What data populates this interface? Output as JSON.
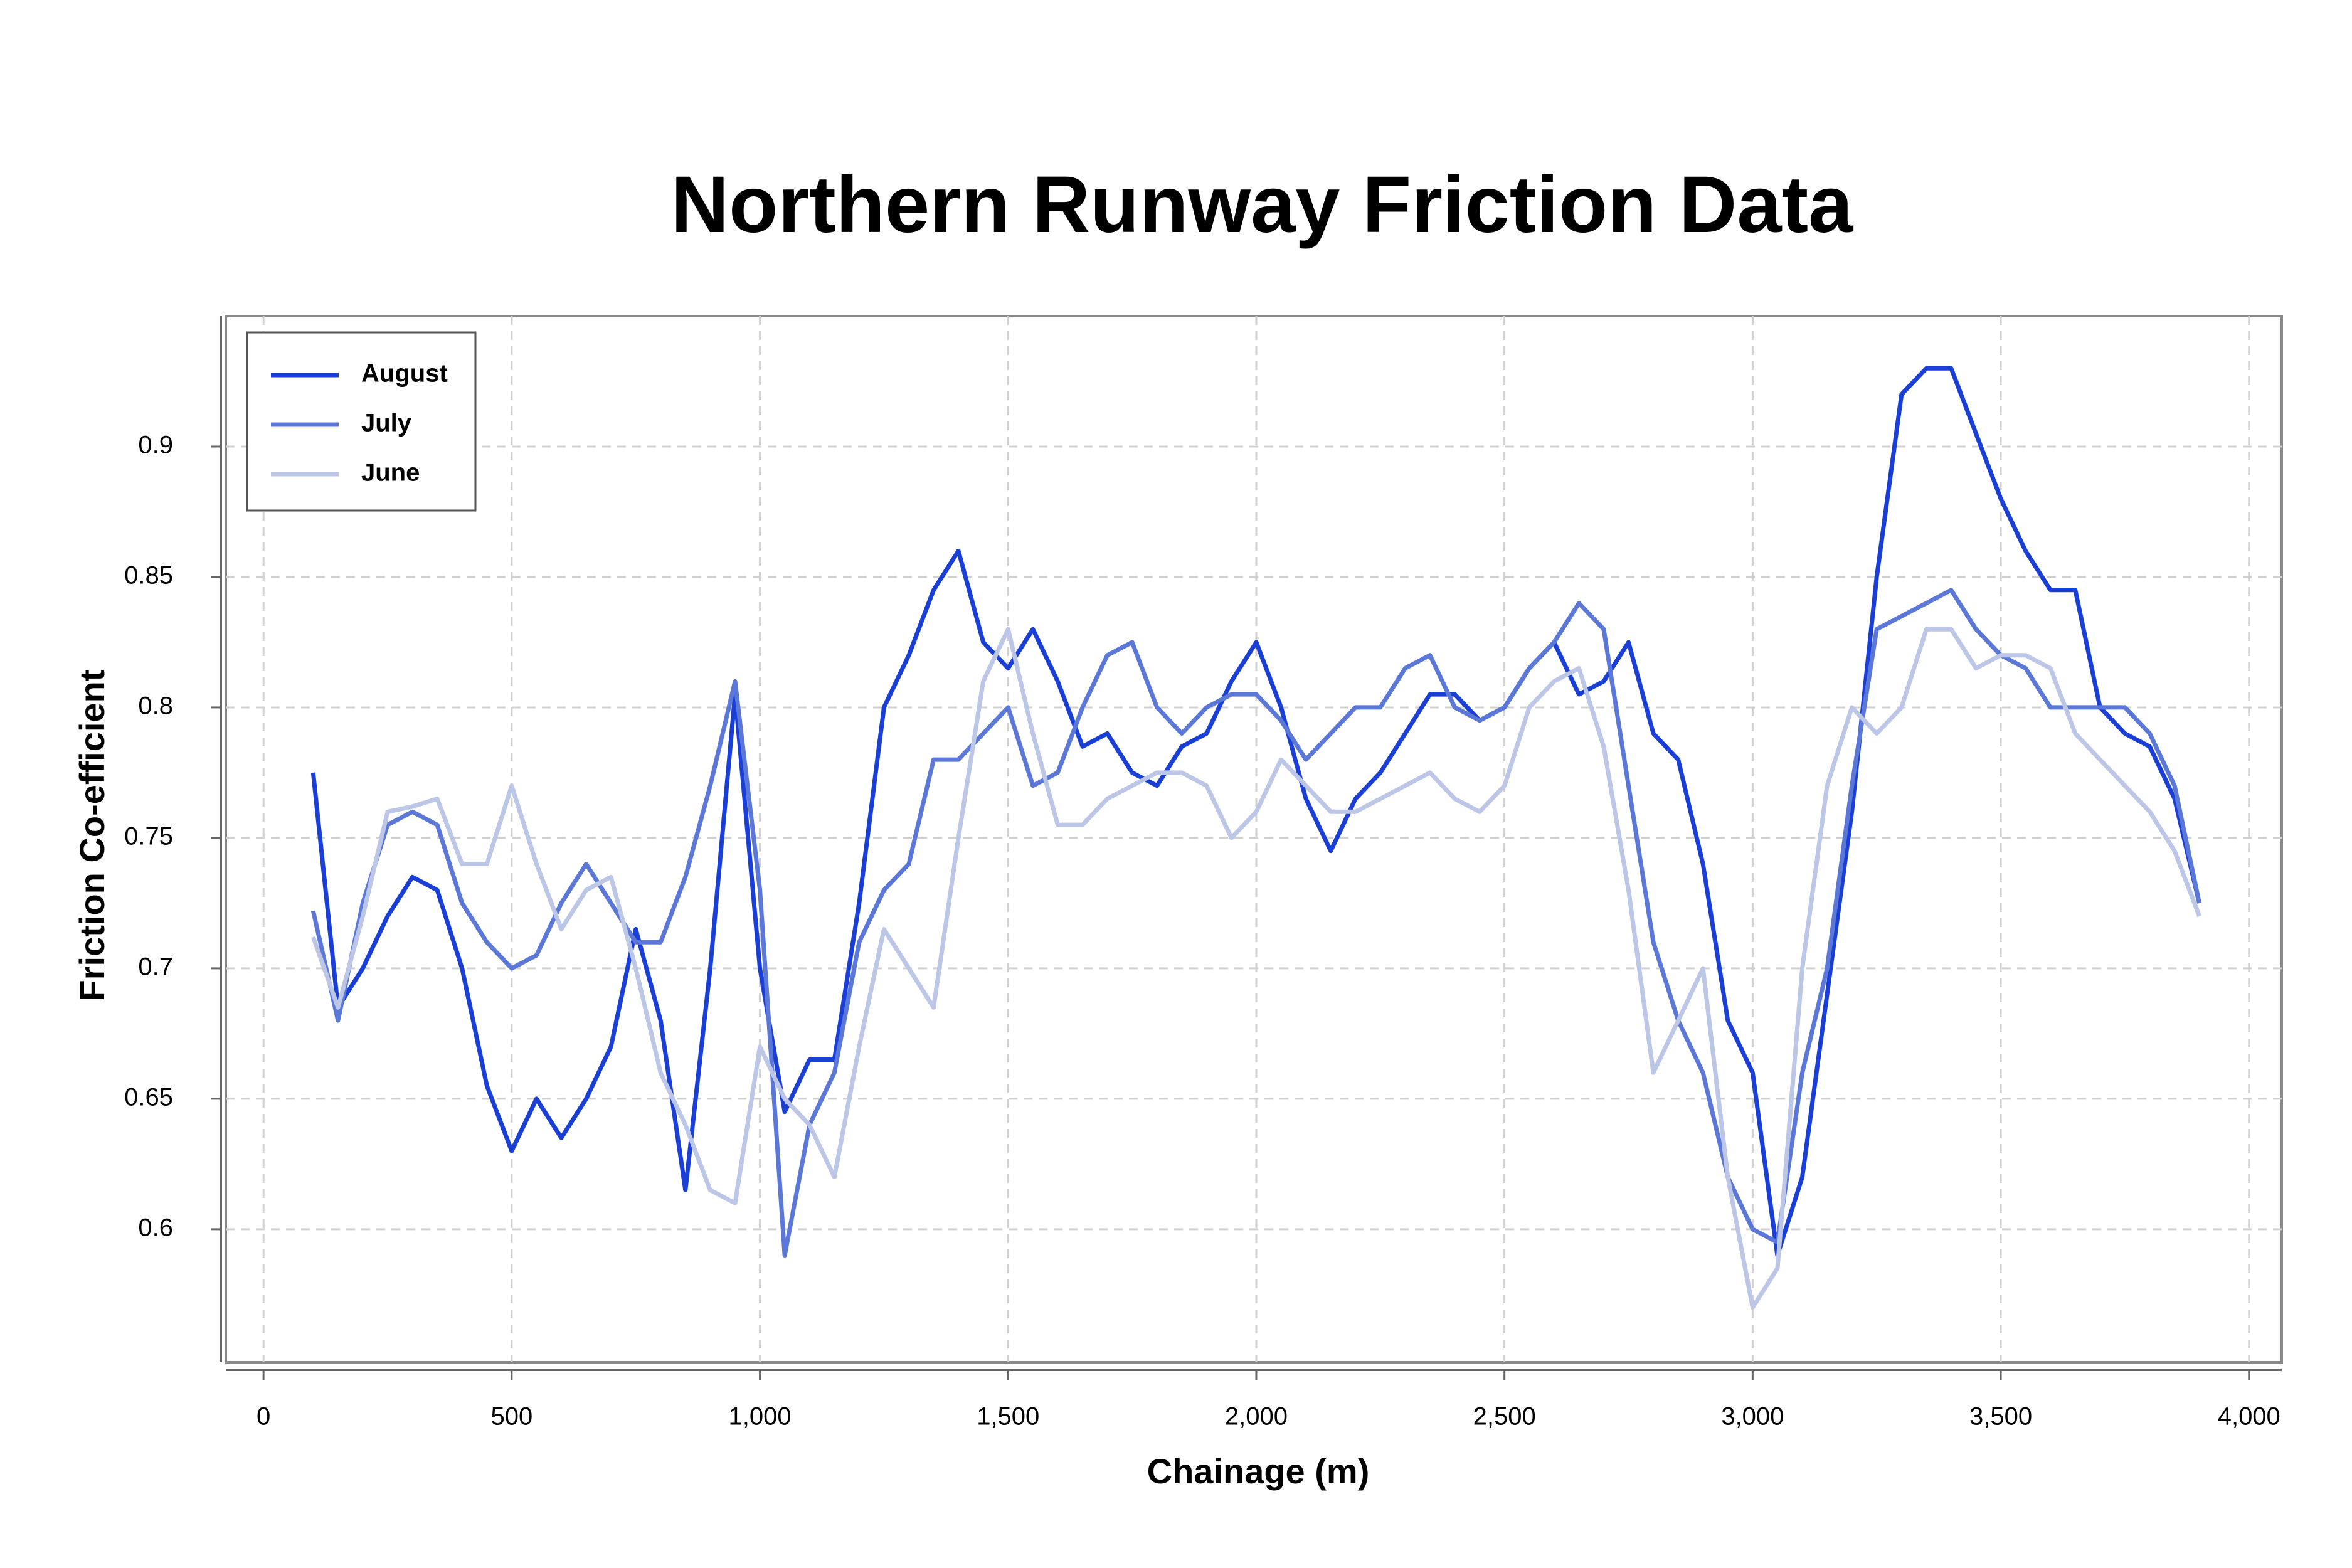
{
  "chart_data": {
    "type": "line",
    "title": "Northern Runway Friction Data",
    "x_label": "Chainage (m)",
    "y_label": "Friction Co-efficient",
    "x": [
      100,
      150,
      200,
      250,
      300,
      350,
      400,
      450,
      500,
      550,
      600,
      650,
      700,
      750,
      800,
      850,
      900,
      950,
      1000,
      1050,
      1100,
      1150,
      1200,
      1250,
      1300,
      1350,
      1400,
      1450,
      1500,
      1550,
      1600,
      1650,
      1700,
      1750,
      1800,
      1850,
      1900,
      1950,
      2000,
      2050,
      2100,
      2150,
      2200,
      2250,
      2300,
      2350,
      2400,
      2450,
      2500,
      2550,
      2600,
      2650,
      2700,
      2750,
      2800,
      2850,
      2900,
      2950,
      3000,
      3050,
      3100,
      3150,
      3200,
      3250,
      3300,
      3350,
      3400,
      3450,
      3500,
      3550,
      3600,
      3650,
      3700,
      3750,
      3800,
      3850,
      3900
    ],
    "series": [
      {
        "name": "August",
        "color": "#1a3fd6",
        "values": [
          0.775,
          0.685,
          0.7,
          0.72,
          0.735,
          0.73,
          0.7,
          0.655,
          0.63,
          0.65,
          0.635,
          0.65,
          0.67,
          0.715,
          0.68,
          0.615,
          0.7,
          0.805,
          0.7,
          0.645,
          0.665,
          0.665,
          0.725,
          0.8,
          0.82,
          0.845,
          0.86,
          0.825,
          0.815,
          0.83,
          0.81,
          0.785,
          0.79,
          0.775,
          0.77,
          0.785,
          0.79,
          0.81,
          0.825,
          0.8,
          0.765,
          0.745,
          0.765,
          0.775,
          0.79,
          0.805,
          0.805,
          0.795,
          0.8,
          0.815,
          0.825,
          0.805,
          0.81,
          0.825,
          0.79,
          0.78,
          0.74,
          0.68,
          0.66,
          0.59,
          0.62,
          0.69,
          0.76,
          0.85,
          0.92,
          0.93,
          0.93,
          0.905,
          0.88,
          0.86,
          0.845,
          0.845,
          0.8,
          0.79,
          0.785,
          0.765,
          0.725
        ]
      },
      {
        "name": "July",
        "color": "#5b78d8",
        "values": [
          0.722,
          0.68,
          0.725,
          0.755,
          0.76,
          0.755,
          0.725,
          0.71,
          0.7,
          0.705,
          0.725,
          0.74,
          0.725,
          0.71,
          0.71,
          0.735,
          0.77,
          0.81,
          0.73,
          0.59,
          0.64,
          0.66,
          0.71,
          0.73,
          0.74,
          0.78,
          0.78,
          0.79,
          0.8,
          0.77,
          0.775,
          0.8,
          0.82,
          0.825,
          0.8,
          0.79,
          0.8,
          0.805,
          0.805,
          0.795,
          0.78,
          0.79,
          0.8,
          0.8,
          0.815,
          0.82,
          0.8,
          0.795,
          0.8,
          0.815,
          0.825,
          0.84,
          0.83,
          0.77,
          0.71,
          0.68,
          0.66,
          0.62,
          0.6,
          0.595,
          0.66,
          0.7,
          0.77,
          0.83,
          0.835,
          0.84,
          0.845,
          0.83,
          0.82,
          0.815,
          0.8,
          0.8,
          0.8,
          0.8,
          0.79,
          0.77,
          0.725
        ]
      },
      {
        "name": "June",
        "color": "#bcc6e6",
        "values": [
          0.712,
          0.685,
          0.72,
          0.76,
          0.762,
          0.765,
          0.74,
          0.74,
          0.77,
          0.74,
          0.715,
          0.73,
          0.735,
          0.7,
          0.66,
          0.64,
          0.615,
          0.61,
          0.67,
          0.65,
          0.64,
          0.62,
          0.67,
          0.715,
          0.7,
          0.685,
          0.75,
          0.81,
          0.83,
          0.79,
          0.755,
          0.755,
          0.765,
          0.77,
          0.775,
          0.775,
          0.77,
          0.75,
          0.76,
          0.78,
          0.77,
          0.76,
          0.76,
          0.765,
          0.77,
          0.775,
          0.765,
          0.76,
          0.77,
          0.8,
          0.81,
          0.815,
          0.785,
          0.73,
          0.66,
          0.68,
          0.7,
          0.62,
          0.57,
          0.585,
          0.7,
          0.77,
          0.8,
          0.79,
          0.8,
          0.83,
          0.83,
          0.815,
          0.82,
          0.82,
          0.815,
          0.79,
          0.78,
          0.77,
          0.76,
          0.745,
          0.72
        ]
      }
    ],
    "xlim": [
      -76,
      4066
    ],
    "ylim": [
      0.549,
      0.95
    ],
    "xticks": [
      0,
      500,
      {
        "value": 1000,
        "label": "1,000"
      },
      {
        "value": 1500,
        "label": "1,500"
      },
      {
        "value": 2000,
        "label": "2,000"
      },
      {
        "value": 2500,
        "label": "2,500"
      },
      {
        "value": 3000,
        "label": "3,000"
      },
      {
        "value": 3500,
        "label": "3,500"
      },
      {
        "value": 4000,
        "label": "4,000"
      }
    ],
    "yticks": [
      0.6,
      0.65,
      0.7,
      0.75,
      0.8,
      0.85,
      0.9
    ],
    "grid": true,
    "legend": "upper left"
  }
}
